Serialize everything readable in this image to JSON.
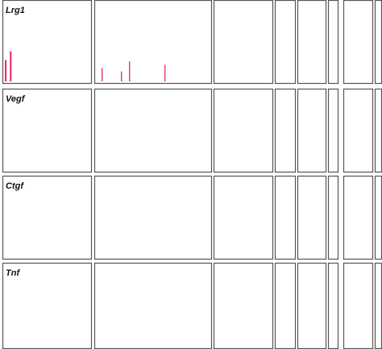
{
  "chart_data": {
    "type": "bar",
    "title": "",
    "xlabel": "",
    "ylabel": "",
    "ylim": [
      0,
      1
    ],
    "grid": false,
    "legend": "none",
    "columns": [
      {
        "color": "#e8336a",
        "bars": 34
      },
      {
        "color": "#e8336a",
        "bars": 70
      },
      {
        "color": "#8aa11a",
        "bars": 36
      },
      {
        "color": "#8aa11a",
        "bars": 12
      },
      {
        "color": "#33e633",
        "bars": 16
      },
      {
        "color": "#33e633",
        "bars": 4
      },
      {
        "color": "#33a8e6",
        "bars": 14
      },
      {
        "color": "#9a33c8",
        "bars": 2
      }
    ],
    "panels": [
      {
        "gene": "Lrg1",
        "values": [
          [
            0.32,
            0.0,
            0.45,
            0.0,
            0.0,
            0.0,
            0.0,
            0.0,
            0.0,
            0.0,
            0.0,
            0.0,
            0.0,
            0.0,
            0.0,
            0.0,
            0.0,
            0.0,
            0.0,
            0.0,
            0.0,
            0.0,
            0.0,
            0.0,
            0.0,
            0.0,
            0.0,
            0.0,
            0.0,
            0.0,
            0.0,
            0.0,
            0.0,
            0.0
          ],
          [
            0.0,
            0.0,
            0.0,
            0.2,
            0.0,
            0.0,
            0.0,
            0.0,
            0.0,
            0.0,
            0.0,
            0.0,
            0.0,
            0.0,
            0.0,
            0.15,
            0.0,
            0.0,
            0.0,
            0.0,
            0.3,
            0.0,
            0.0,
            0.0,
            0.0,
            0.0,
            0.0,
            0.0,
            0.0,
            0.0,
            0.0,
            0.0,
            0.0,
            0.0,
            0.0,
            0.0,
            0.0,
            0.0,
            0.0,
            0.0,
            0.0,
            0.0,
            0.25,
            0.0,
            0.0,
            0.0,
            0.0,
            0.0,
            0.0,
            0.0,
            0.0,
            0.0,
            0.0,
            0.0,
            0.0,
            0.0,
            0.0,
            0.0,
            0.0,
            0.0,
            0.0,
            0.0,
            0.0,
            0.0,
            0.0,
            0.0,
            0.0,
            0.0,
            0.0,
            0.0
          ],
          [
            0.0,
            0.0,
            0.0,
            0.0,
            0.0,
            0.0,
            0.0,
            0.0,
            0.0,
            0.0,
            0.0,
            0.0,
            0.0,
            0.0,
            0.0,
            0.0,
            0.0,
            0.0,
            0.0,
            0.0,
            0.0,
            0.0,
            0.0,
            0.0,
            0.0,
            0.0,
            0.0,
            0.0,
            0.0,
            0.0,
            0.0,
            0.0,
            0.0,
            0.0,
            0.0,
            0.0
          ],
          [
            0.0,
            0.0,
            0.0,
            0.0,
            0.0,
            0.0,
            0.0,
            0.0,
            0.0,
            0.0,
            0.0,
            0.0
          ],
          [
            0.0,
            0.0,
            0.0,
            0.0,
            0.0,
            0.0,
            0.0,
            0.0,
            0.0,
            0.0,
            0.0,
            0.0,
            0.0,
            0.0,
            0.0,
            0.0
          ],
          [
            0.0,
            0.0,
            0.0,
            0.0
          ],
          [
            0.0,
            0.0,
            0.0,
            0.0,
            0.0,
            0.0,
            0.0,
            0.0,
            0.0,
            0.0,
            0.0,
            0.0,
            0.0,
            0.0
          ],
          [
            0.0,
            0.0
          ]
        ]
      },
      {
        "gene": "Vegf",
        "values": [
          [
            0.0,
            0.0,
            0.0,
            0.0,
            0.0,
            0.0,
            0.0,
            0.0,
            0.0,
            0.0,
            0.0,
            0.0,
            0.0,
            0.0,
            0.0,
            0.0,
            0.0,
            0.0,
            0.0,
            0.0,
            0.0,
            0.0,
            0.0,
            0.0,
            0.0,
            0.0,
            0.0,
            0.0,
            0.0,
            0.0,
            0.0,
            0.0,
            0.0,
            0.0
          ],
          [
            0.0,
            0.0,
            0.0,
            0.0,
            0.0,
            0.0,
            0.0,
            0.0,
            0.0,
            0.0,
            0.0,
            0.0,
            0.0,
            0.0,
            0.0,
            0.0,
            0.0,
            0.0,
            0.0,
            0.0,
            0.0,
            0.0,
            0.0,
            0.0,
            0.0,
            0.0,
            0.0,
            0.0,
            0.0,
            0.0,
            0.0,
            0.0,
            0.0,
            0.0,
            0.0,
            0.0,
            0.0,
            0.0,
            0.0,
            0.0,
            0.0,
            0.0,
            0.0,
            0.0,
            0.0,
            0.0,
            0.0,
            0.0,
            0.0,
            0.0,
            0.0,
            0.0,
            0.0,
            0.0,
            0.0,
            0.0,
            0.0,
            0.0,
            0.0,
            0.0,
            0.0,
            0.0,
            0.0,
            0.0,
            0.0,
            0.0,
            0.0,
            0.0,
            0.0,
            0.0
          ],
          [
            0.0,
            0.0,
            0.0,
            0.0,
            0.0,
            0.0,
            0.0,
            0.0,
            0.0,
            0.0,
            0.0,
            0.0,
            0.0,
            0.0,
            0.0,
            0.0,
            0.0,
            0.0,
            0.0,
            0.0,
            0.0,
            0.0,
            0.0,
            0.0,
            0.0,
            0.0,
            0.0,
            0.0,
            0.0,
            0.0,
            0.0,
            0.0,
            0.0,
            0.0,
            0.0,
            0.0
          ],
          [
            0.0,
            0.0,
            0.0,
            0.0,
            0.0,
            0.0,
            0.0,
            0.0,
            0.0,
            0.0,
            0.0,
            0.0
          ],
          [
            0.0,
            0.0,
            0.0,
            0.0,
            0.0,
            0.0,
            0.0,
            0.0,
            0.0,
            0.0,
            0.0,
            0.0,
            0.0,
            0.0,
            0.0,
            0.0
          ],
          [
            0.0,
            0.0,
            0.0,
            0.0
          ],
          [
            0.0,
            0.0,
            0.0,
            0.0,
            0.0,
            0.0,
            0.0,
            0.0,
            0.0,
            0.0,
            0.0,
            0.0,
            0.0,
            0.0
          ],
          [
            0.0,
            0.0
          ]
        ]
      },
      {
        "gene": "Ctgf",
        "values": [
          [
            0.0,
            0.0,
            0.0,
            0.0,
            0.0,
            0.0,
            0.0,
            0.0,
            0.0,
            0.0,
            0.0,
            0.0,
            0.0,
            0.0,
            0.0,
            0.0,
            0.0,
            0.0,
            0.0,
            0.0,
            0.0,
            0.0,
            0.0,
            0.0,
            0.0,
            0.0,
            0.0,
            0.0,
            0.0,
            0.0,
            0.0,
            0.0,
            0.0,
            0.0
          ],
          [
            0.0,
            0.0,
            0.0,
            0.0,
            0.0,
            0.0,
            0.0,
            0.0,
            0.0,
            0.0,
            0.0,
            0.0,
            0.0,
            0.0,
            0.0,
            0.0,
            0.0,
            0.0,
            0.0,
            0.0,
            0.0,
            0.0,
            0.0,
            0.0,
            0.0,
            0.0,
            0.0,
            0.0,
            0.0,
            0.0,
            0.0,
            0.0,
            0.0,
            0.0,
            0.0,
            0.0,
            0.0,
            0.0,
            0.0,
            0.0,
            0.0,
            0.0,
            0.0,
            0.0,
            0.0,
            0.0,
            0.0,
            0.0,
            0.0,
            0.0,
            0.0,
            0.0,
            0.0,
            0.0,
            0.0,
            0.0,
            0.0,
            0.0,
            0.0,
            0.0,
            0.0,
            0.0,
            0.0,
            0.0,
            0.0,
            0.0,
            0.0,
            0.0,
            0.0,
            0.0
          ],
          [
            0.0,
            0.0,
            0.0,
            0.0,
            0.0,
            0.0,
            0.0,
            0.0,
            0.0,
            0.0,
            0.0,
            0.0,
            0.0,
            0.0,
            0.0,
            0.0,
            0.0,
            0.0,
            0.0,
            0.0,
            0.0,
            0.0,
            0.0,
            0.0,
            0.0,
            0.0,
            0.0,
            0.0,
            0.0,
            0.0,
            0.0,
            0.0,
            0.0,
            0.0,
            0.0,
            0.0
          ],
          [
            0.0,
            0.0,
            0.0,
            0.0,
            0.0,
            0.0,
            0.0,
            0.0,
            0.0,
            0.0,
            0.0,
            0.0
          ],
          [
            0.0,
            0.0,
            0.0,
            0.0,
            0.0,
            0.0,
            0.0,
            0.0,
            0.0,
            0.0,
            0.0,
            0.0,
            0.0,
            0.0,
            0.0,
            0.0
          ],
          [
            0.0,
            0.0,
            0.0,
            0.0
          ],
          [
            0.0,
            0.0,
            0.0,
            0.0,
            0.0,
            0.0,
            0.0,
            0.0,
            0.0,
            0.0,
            0.0,
            0.0,
            0.0,
            0.0
          ],
          [
            0.0,
            0.0
          ]
        ]
      },
      {
        "gene": "Tnf",
        "values": [
          [
            0.0,
            0.0,
            0.0,
            0.0,
            0.0,
            0.0,
            0.0,
            0.0,
            0.0,
            0.0,
            0.0,
            0.0,
            0.0,
            0.0,
            0.0,
            0.0,
            0.0,
            0.0,
            0.0,
            0.0,
            0.0,
            0.0,
            0.0,
            0.0,
            0.0,
            0.0,
            0.0,
            0.0,
            0.0,
            0.0,
            0.0,
            0.0,
            0.0,
            0.0
          ],
          [
            0.0,
            0.0,
            0.0,
            0.0,
            0.0,
            0.0,
            0.0,
            0.0,
            0.0,
            0.0,
            0.0,
            0.0,
            0.0,
            0.0,
            0.0,
            0.0,
            0.0,
            0.0,
            0.0,
            0.0,
            0.0,
            0.0,
            0.0,
            0.0,
            0.0,
            0.0,
            0.0,
            0.0,
            0.0,
            0.0,
            0.0,
            0.0,
            0.0,
            0.0,
            0.0,
            0.0,
            0.0,
            0.0,
            0.0,
            0.0,
            0.0,
            0.0,
            0.0,
            0.0,
            0.0,
            0.0,
            0.0,
            0.0,
            0.0,
            0.0,
            0.0,
            0.0,
            0.0,
            0.0,
            0.0,
            0.0,
            0.0,
            0.0,
            0.0,
            0.0,
            0.0,
            0.0,
            0.0,
            0.0,
            0.0,
            0.0,
            0.0,
            0.0,
            0.0,
            0.0
          ],
          [
            0.0,
            0.0,
            0.0,
            0.0,
            0.0,
            0.0,
            0.0,
            0.0,
            0.0,
            0.0,
            0.0,
            0.0,
            0.0,
            0.0,
            0.0,
            0.0,
            0.0,
            0.0,
            0.0,
            0.0,
            0.0,
            0.0,
            0.0,
            0.0,
            0.0,
            0.0,
            0.0,
            0.0,
            0.0,
            0.0,
            0.0,
            0.0,
            0.0,
            0.0,
            0.0,
            0.0
          ],
          [
            0.0,
            0.0,
            0.0,
            0.0,
            0.0,
            0.0,
            0.0,
            0.0,
            0.0,
            0.0,
            0.0,
            0.0
          ],
          [
            0.0,
            0.0,
            0.0,
            0.0,
            0.0,
            0.0,
            0.0,
            0.0,
            0.0,
            0.0,
            0.0,
            0.0,
            0.0,
            0.0,
            0.0,
            0.0
          ],
          [
            0.0,
            0.0,
            0.0,
            0.0
          ],
          [
            0.0,
            0.0,
            0.0,
            0.0,
            0.0,
            0.0,
            0.0,
            0.0,
            0.0,
            0.0,
            0.0,
            0.0,
            0.0,
            0.0
          ],
          [
            0.0,
            0.0
          ]
        ]
      }
    ]
  }
}
